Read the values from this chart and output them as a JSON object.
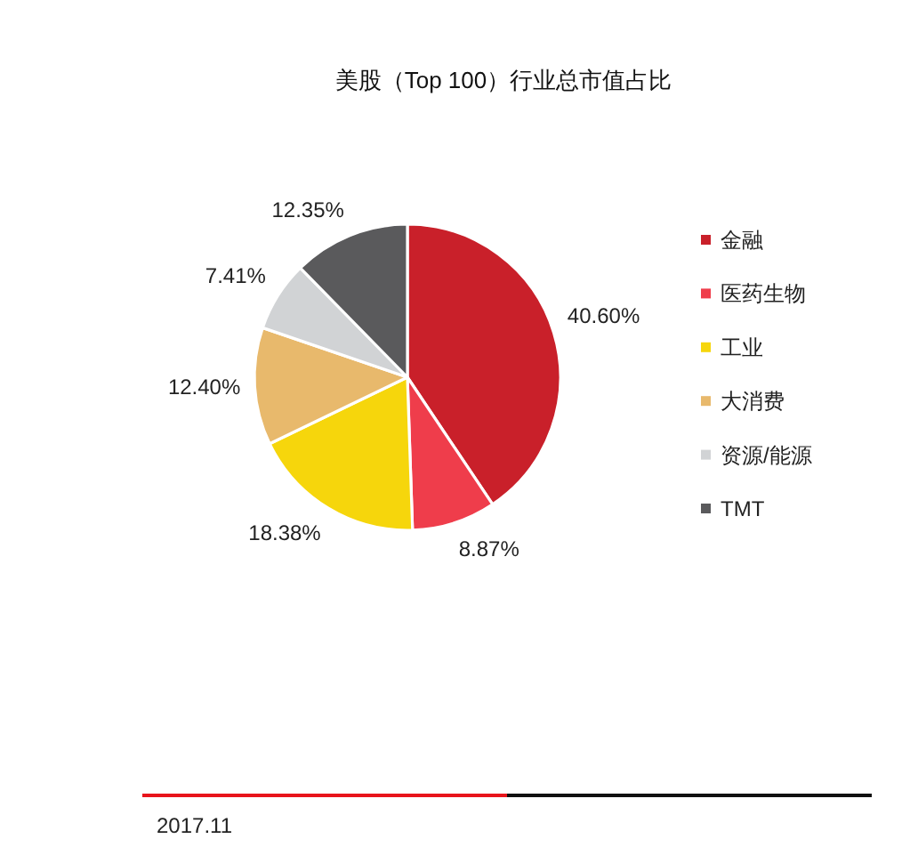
{
  "chart_data": {
    "type": "pie",
    "title": "美股（Top 100）行业总市值占比",
    "categories": [
      "金融",
      "医药生物",
      "工业",
      "大消费",
      "资源/能源",
      "TMT"
    ],
    "values": [
      40.6,
      8.87,
      18.38,
      12.4,
      7.41,
      12.35
    ],
    "colors": [
      "#c9202a",
      "#ef3d4b",
      "#f6d60c",
      "#e8b96c",
      "#d1d3d5",
      "#5a5a5c"
    ],
    "value_labels": [
      "40.60%",
      "8.87%",
      "18.38%",
      "12.40%",
      "7.41%",
      "12.35%"
    ],
    "legend": "right",
    "annotations": [
      "2017.11"
    ]
  }
}
